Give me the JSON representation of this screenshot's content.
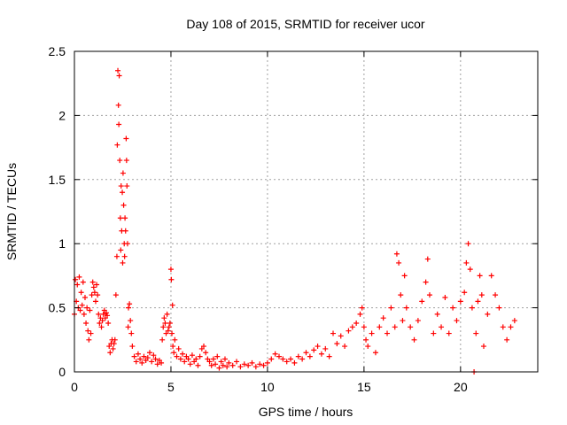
{
  "chart_data": {
    "type": "scatter",
    "title": "Day 108 of 2015, SRMTID for receiver ucor",
    "xlabel": "GPS time / hours",
    "ylabel": "SRMTID / TECUs",
    "xlim": [
      0,
      24
    ],
    "ylim": [
      0,
      2.5
    ],
    "xticks": [
      0,
      5,
      10,
      15,
      20
    ],
    "xtick_labels": [
      "0",
      "5",
      "10",
      "15",
      "20"
    ],
    "yticks": [
      0,
      0.5,
      1,
      1.5,
      2,
      2.5
    ],
    "ytick_labels": [
      "0",
      "0.5",
      "1",
      "1.5",
      "2",
      "2.5"
    ],
    "grid": true,
    "marker": "+",
    "series": [
      {
        "name": "SRMTID",
        "color": "#ff0000",
        "points": [
          [
            0.0,
            0.45
          ],
          [
            0.05,
            0.72
          ],
          [
            0.1,
            0.55
          ],
          [
            0.15,
            0.68
          ],
          [
            0.2,
            0.5
          ],
          [
            0.25,
            0.74
          ],
          [
            0.3,
            0.48
          ],
          [
            0.35,
            0.62
          ],
          [
            0.4,
            0.52
          ],
          [
            0.45,
            0.7
          ],
          [
            0.5,
            0.45
          ],
          [
            0.55,
            0.58
          ],
          [
            0.6,
            0.38
          ],
          [
            0.65,
            0.5
          ],
          [
            0.7,
            0.32
          ],
          [
            0.75,
            0.25
          ],
          [
            0.8,
            0.48
          ],
          [
            0.85,
            0.3
          ],
          [
            0.9,
            0.6
          ],
          [
            0.95,
            0.7
          ],
          [
            1.0,
            0.66
          ],
          [
            1.05,
            0.62
          ],
          [
            1.1,
            0.55
          ],
          [
            1.15,
            0.68
          ],
          [
            1.2,
            0.6
          ],
          [
            1.25,
            0.45
          ],
          [
            1.3,
            0.38
          ],
          [
            1.35,
            0.42
          ],
          [
            1.4,
            0.35
          ],
          [
            1.45,
            0.4
          ],
          [
            1.5,
            0.45
          ],
          [
            1.55,
            0.48
          ],
          [
            1.6,
            0.42
          ],
          [
            1.65,
            0.46
          ],
          [
            1.7,
            0.44
          ],
          [
            1.75,
            0.38
          ],
          [
            1.8,
            0.2
          ],
          [
            1.85,
            0.15
          ],
          [
            1.9,
            0.22
          ],
          [
            1.95,
            0.25
          ],
          [
            2.0,
            0.18
          ],
          [
            2.05,
            0.22
          ],
          [
            2.1,
            0.25
          ],
          [
            2.15,
            0.6
          ],
          [
            2.2,
            0.9
          ],
          [
            2.22,
            1.77
          ],
          [
            2.25,
            2.35
          ],
          [
            2.28,
            2.08
          ],
          [
            2.3,
            1.93
          ],
          [
            2.32,
            2.31
          ],
          [
            2.35,
            1.65
          ],
          [
            2.38,
            1.2
          ],
          [
            2.4,
            0.95
          ],
          [
            2.42,
            1.45
          ],
          [
            2.45,
            1.1
          ],
          [
            2.48,
            1.4
          ],
          [
            2.5,
            0.85
          ],
          [
            2.52,
            1.55
          ],
          [
            2.55,
            1.3
          ],
          [
            2.58,
            1.0
          ],
          [
            2.6,
            0.9
          ],
          [
            2.62,
            1.2
          ],
          [
            2.65,
            1.1
          ],
          [
            2.68,
            1.82
          ],
          [
            2.7,
            1.65
          ],
          [
            2.72,
            1.45
          ],
          [
            2.75,
            1.0
          ],
          [
            2.78,
            0.35
          ],
          [
            2.8,
            0.5
          ],
          [
            2.85,
            0.53
          ],
          [
            2.9,
            0.4
          ],
          [
            2.95,
            0.3
          ],
          [
            3.0,
            0.2
          ],
          [
            3.1,
            0.12
          ],
          [
            3.2,
            0.08
          ],
          [
            3.3,
            0.14
          ],
          [
            3.4,
            0.1
          ],
          [
            3.5,
            0.07
          ],
          [
            3.6,
            0.12
          ],
          [
            3.7,
            0.09
          ],
          [
            3.8,
            0.11
          ],
          [
            3.9,
            0.15
          ],
          [
            4.0,
            0.08
          ],
          [
            4.1,
            0.13
          ],
          [
            4.2,
            0.1
          ],
          [
            4.3,
            0.06
          ],
          [
            4.4,
            0.09
          ],
          [
            4.5,
            0.07
          ],
          [
            4.55,
            0.25
          ],
          [
            4.6,
            0.35
          ],
          [
            4.65,
            0.42
          ],
          [
            4.7,
            0.38
          ],
          [
            4.75,
            0.3
          ],
          [
            4.8,
            0.45
          ],
          [
            4.85,
            0.32
          ],
          [
            4.9,
            0.35
          ],
          [
            4.95,
            0.38
          ],
          [
            5.0,
            0.8
          ],
          [
            5.02,
            0.72
          ],
          [
            5.05,
            0.3
          ],
          [
            5.08,
            0.52
          ],
          [
            5.1,
            0.2
          ],
          [
            5.15,
            0.15
          ],
          [
            5.2,
            0.25
          ],
          [
            5.3,
            0.12
          ],
          [
            5.4,
            0.18
          ],
          [
            5.5,
            0.1
          ],
          [
            5.6,
            0.14
          ],
          [
            5.7,
            0.08
          ],
          [
            5.8,
            0.12
          ],
          [
            5.9,
            0.1
          ],
          [
            6.0,
            0.06
          ],
          [
            6.1,
            0.13
          ],
          [
            6.2,
            0.08
          ],
          [
            6.3,
            0.1
          ],
          [
            6.4,
            0.05
          ],
          [
            6.5,
            0.12
          ],
          [
            6.6,
            0.18
          ],
          [
            6.7,
            0.2
          ],
          [
            6.8,
            0.15
          ],
          [
            6.9,
            0.1
          ],
          [
            7.0,
            0.08
          ],
          [
            7.1,
            0.05
          ],
          [
            7.2,
            0.1
          ],
          [
            7.3,
            0.06
          ],
          [
            7.4,
            0.12
          ],
          [
            7.5,
            0.03
          ],
          [
            7.6,
            0.08
          ],
          [
            7.7,
            0.05
          ],
          [
            7.8,
            0.1
          ],
          [
            7.9,
            0.04
          ],
          [
            8.0,
            0.07
          ],
          [
            8.2,
            0.05
          ],
          [
            8.4,
            0.08
          ],
          [
            8.6,
            0.04
          ],
          [
            8.8,
            0.06
          ],
          [
            9.0,
            0.05
          ],
          [
            9.2,
            0.07
          ],
          [
            9.4,
            0.04
          ],
          [
            9.6,
            0.06
          ],
          [
            9.8,
            0.05
          ],
          [
            10.0,
            0.07
          ],
          [
            10.2,
            0.1
          ],
          [
            10.4,
            0.14
          ],
          [
            10.6,
            0.12
          ],
          [
            10.8,
            0.1
          ],
          [
            11.0,
            0.08
          ],
          [
            11.2,
            0.1
          ],
          [
            11.4,
            0.07
          ],
          [
            11.6,
            0.12
          ],
          [
            11.8,
            0.1
          ],
          [
            12.0,
            0.15
          ],
          [
            12.2,
            0.12
          ],
          [
            12.4,
            0.17
          ],
          [
            12.6,
            0.2
          ],
          [
            12.8,
            0.14
          ],
          [
            13.0,
            0.18
          ],
          [
            13.2,
            0.12
          ],
          [
            13.4,
            0.3
          ],
          [
            13.6,
            0.22
          ],
          [
            13.8,
            0.28
          ],
          [
            14.0,
            0.2
          ],
          [
            14.2,
            0.32
          ],
          [
            14.4,
            0.35
          ],
          [
            14.6,
            0.38
          ],
          [
            14.8,
            0.45
          ],
          [
            14.9,
            0.5
          ],
          [
            15.0,
            0.35
          ],
          [
            15.1,
            0.25
          ],
          [
            15.2,
            0.2
          ],
          [
            15.4,
            0.3
          ],
          [
            15.6,
            0.15
          ],
          [
            15.8,
            0.35
          ],
          [
            16.0,
            0.42
          ],
          [
            16.2,
            0.3
          ],
          [
            16.4,
            0.5
          ],
          [
            16.6,
            0.35
          ],
          [
            16.7,
            0.92
          ],
          [
            16.8,
            0.85
          ],
          [
            16.9,
            0.6
          ],
          [
            17.0,
            0.4
          ],
          [
            17.1,
            0.75
          ],
          [
            17.2,
            0.5
          ],
          [
            17.4,
            0.35
          ],
          [
            17.6,
            0.25
          ],
          [
            17.8,
            0.4
          ],
          [
            18.0,
            0.55
          ],
          [
            18.2,
            0.7
          ],
          [
            18.3,
            0.88
          ],
          [
            18.4,
            0.6
          ],
          [
            18.6,
            0.3
          ],
          [
            18.8,
            0.45
          ],
          [
            19.0,
            0.35
          ],
          [
            19.2,
            0.58
          ],
          [
            19.4,
            0.3
          ],
          [
            19.6,
            0.5
          ],
          [
            19.8,
            0.4
          ],
          [
            20.0,
            0.55
          ],
          [
            20.2,
            0.62
          ],
          [
            20.3,
            0.85
          ],
          [
            20.4,
            1.0
          ],
          [
            20.5,
            0.8
          ],
          [
            20.6,
            0.5
          ],
          [
            20.7,
            0.0
          ],
          [
            20.8,
            0.3
          ],
          [
            20.9,
            0.55
          ],
          [
            21.0,
            0.75
          ],
          [
            21.1,
            0.6
          ],
          [
            21.2,
            0.2
          ],
          [
            21.4,
            0.45
          ],
          [
            21.6,
            0.75
          ],
          [
            21.8,
            0.6
          ],
          [
            22.0,
            0.5
          ],
          [
            22.2,
            0.35
          ],
          [
            22.4,
            0.25
          ],
          [
            22.6,
            0.35
          ],
          [
            22.8,
            0.4
          ]
        ]
      }
    ]
  }
}
